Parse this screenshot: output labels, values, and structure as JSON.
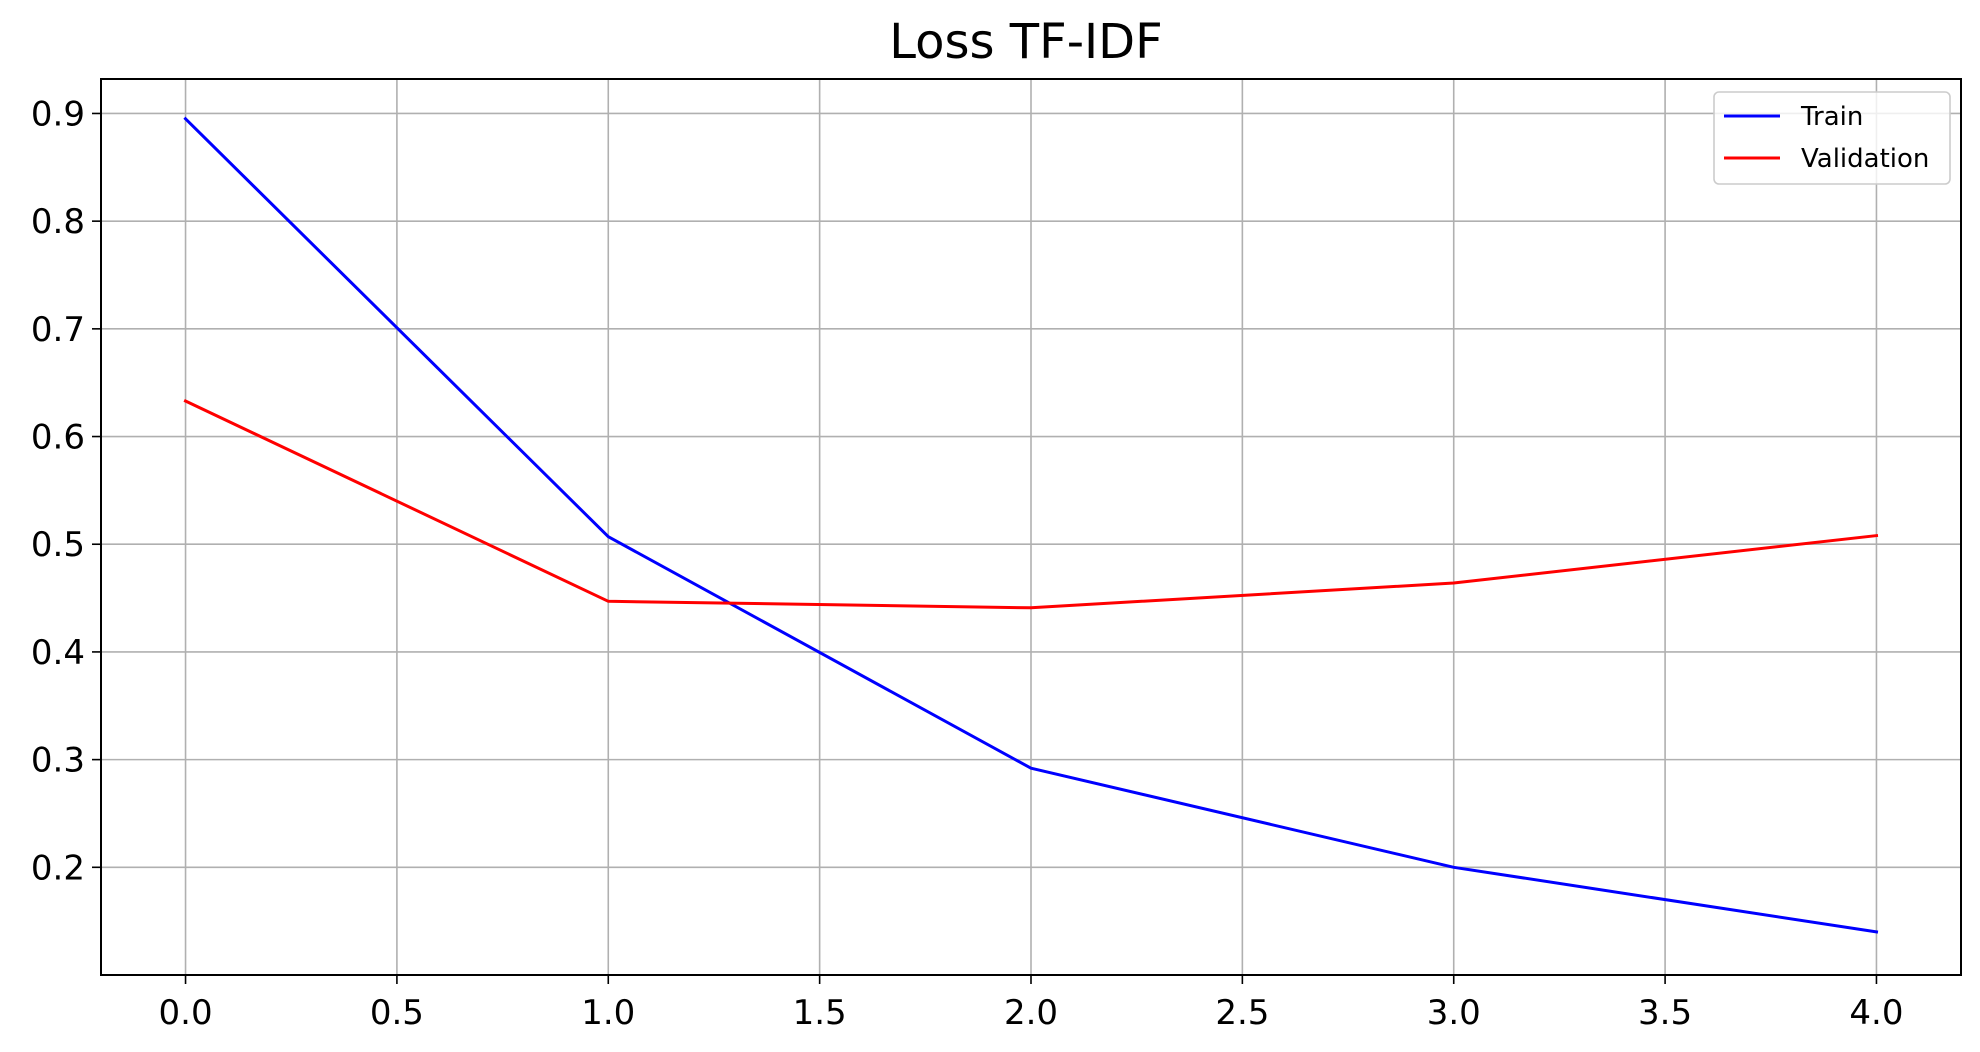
{
  "chart_data": {
    "type": "line",
    "title": "Loss TF-IDF",
    "xlabel": "",
    "ylabel": "",
    "xlim": [
      -0.2,
      4.2
    ],
    "ylim": [
      0.1,
      0.932
    ],
    "x_ticks": [
      0.0,
      0.5,
      1.0,
      1.5,
      2.0,
      2.5,
      3.0,
      3.5,
      4.0
    ],
    "x_tick_labels": [
      "0.0",
      "0.5",
      "1.0",
      "1.5",
      "2.0",
      "2.5",
      "3.0",
      "3.5",
      "4.0"
    ],
    "y_ticks": [
      0.2,
      0.3,
      0.4,
      0.5,
      0.6,
      0.7,
      0.8,
      0.9
    ],
    "y_tick_labels": [
      "0.2",
      "0.3",
      "0.4",
      "0.5",
      "0.6",
      "0.7",
      "0.8",
      "0.9"
    ],
    "grid": true,
    "legend_position": "top-right",
    "x": [
      0,
      1,
      2,
      3,
      4
    ],
    "series": [
      {
        "name": "Train",
        "color": "#0000ff",
        "values": [
          0.895,
          0.507,
          0.292,
          0.2,
          0.14
        ]
      },
      {
        "name": "Validation",
        "color": "#ff0000",
        "values": [
          0.633,
          0.447,
          0.441,
          0.464,
          0.508
        ]
      }
    ]
  }
}
